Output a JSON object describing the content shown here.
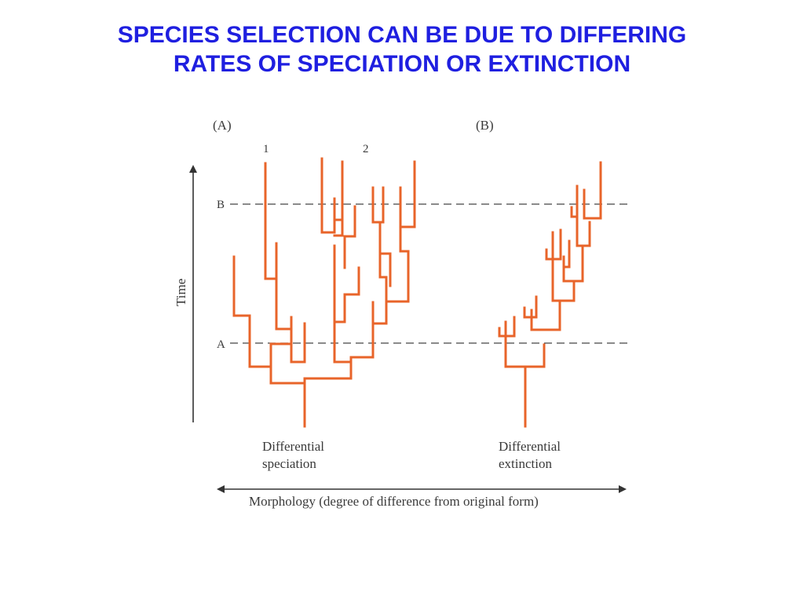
{
  "slide": {
    "title_line1": "SPECIES SELECTION CAN BE DUE TO DIFFERING",
    "title_line2": "RATES OF SPECIATION OR EXTINCTION",
    "title_color": "#1f1fe0"
  },
  "figure": {
    "panel_a_label": "(A)",
    "panel_b_label": "(B)",
    "lineage_1_label": "1",
    "lineage_2_label": "2",
    "level_a_label": "A",
    "level_b_label": "B",
    "y_axis_label": "Time",
    "x_axis_label": "Morphology (degree of difference from original form)",
    "caption_a_line1": "Differential",
    "caption_a_line2": "speciation",
    "caption_b_line1": "Differential",
    "caption_b_line2": "extinction",
    "branch_color": "#e8642a",
    "panel_a_icon": "phylogenetic-tree-icon",
    "panel_b_icon": "phylogenetic-tree-icon"
  }
}
